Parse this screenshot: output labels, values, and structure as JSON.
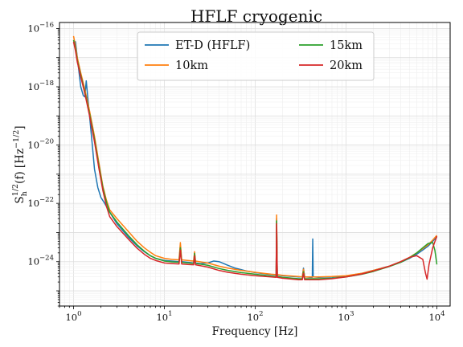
{
  "chart_data": {
    "type": "line",
    "title": "HFLF cryogenic",
    "xlabel": "Frequency [Hz]",
    "ylabel_main": "S",
    "ylabel_sub": "h",
    "ylabel_sup": "1/2",
    "ylabel_rest": "(f) [Hz",
    "ylabel_unit_sup": "−1/2",
    "ylabel_close": "]",
    "xscale": "log",
    "yscale": "log",
    "xlim": [
      0.7,
      14000
    ],
    "ylim": [
      3e-26,
      1.6e-16
    ],
    "grid": true,
    "legend_position": "top-center",
    "x_ticks": [
      {
        "value": 1,
        "base": "10",
        "exp": "0"
      },
      {
        "value": 10,
        "base": "10",
        "exp": "1"
      },
      {
        "value": 100,
        "base": "10",
        "exp": "2"
      },
      {
        "value": 1000,
        "base": "10",
        "exp": "3"
      },
      {
        "value": 10000,
        "base": "10",
        "exp": "4"
      }
    ],
    "y_ticks": [
      {
        "value": 1e-16,
        "base": "10",
        "exp": "−16"
      },
      {
        "value": 1e-18,
        "base": "10",
        "exp": "−18"
      },
      {
        "value": 1e-20,
        "base": "10",
        "exp": "−20"
      },
      {
        "value": 1e-22,
        "base": "10",
        "exp": "−22"
      },
      {
        "value": 1e-24,
        "base": "10",
        "exp": "−24"
      }
    ],
    "series": [
      {
        "name": "ET-D (HFLF)",
        "color": "#1f77b4",
        "points": [
          [
            1.0,
            3e-17
          ],
          [
            1.05,
            3.5e-17
          ],
          [
            1.1,
            1e-17
          ],
          [
            1.2,
            1e-18
          ],
          [
            1.28,
            5e-19
          ],
          [
            1.33,
            4.5e-19
          ],
          [
            1.38,
            1.6e-18
          ],
          [
            1.42,
            6e-19
          ],
          [
            1.5,
            1e-19
          ],
          [
            1.6,
            1.2e-20
          ],
          [
            1.7,
            1.5e-21
          ],
          [
            1.85,
            3.5e-22
          ],
          [
            2.0,
            1.6e-22
          ],
          [
            2.2,
            1e-22
          ],
          [
            2.5,
            5e-23
          ],
          [
            3,
            2e-23
          ],
          [
            4,
            7e-24
          ],
          [
            5,
            3.5e-24
          ],
          [
            6,
            2.2e-24
          ],
          [
            7,
            1.6e-24
          ],
          [
            8,
            1.3e-24
          ],
          [
            10,
            1.1e-24
          ],
          [
            12,
            1.05e-24
          ],
          [
            14.5,
            1e-24
          ],
          [
            15,
            3.5e-24
          ],
          [
            15.5,
            1e-24
          ],
          [
            18,
            9.5e-25
          ],
          [
            21,
            9e-25
          ],
          [
            21.5,
            2e-24
          ],
          [
            22,
            9e-25
          ],
          [
            25,
            8.5e-25
          ],
          [
            30,
            9e-25
          ],
          [
            35,
            1.05e-24
          ],
          [
            40,
            1e-24
          ],
          [
            50,
            7.5e-25
          ],
          [
            60,
            6e-25
          ],
          [
            80,
            4.8e-25
          ],
          [
            100,
            4.2e-25
          ],
          [
            150,
            3.6e-25
          ],
          [
            170,
            3.5e-25
          ],
          [
            172,
            3e-23
          ],
          [
            175,
            3.5e-25
          ],
          [
            200,
            3.3e-25
          ],
          [
            300,
            3e-25
          ],
          [
            330,
            3e-25
          ],
          [
            340,
            6e-25
          ],
          [
            350,
            3e-25
          ],
          [
            400,
            2.9e-25
          ],
          [
            425,
            2.9e-25
          ],
          [
            430,
            6e-24
          ],
          [
            435,
            3e-25
          ],
          [
            500,
            2.9e-25
          ],
          [
            700,
            3e-25
          ],
          [
            1000,
            3.2e-25
          ],
          [
            1500,
            4e-25
          ],
          [
            2000,
            5e-25
          ],
          [
            3000,
            7e-25
          ],
          [
            4000,
            9.5e-25
          ],
          [
            5000,
            1.3e-24
          ],
          [
            6000,
            1.8e-24
          ],
          [
            7000,
            2.5e-24
          ],
          [
            8000,
            3.4e-24
          ],
          [
            9000,
            5e-24
          ],
          [
            10000,
            7e-24
          ]
        ]
      },
      {
        "name": "10km",
        "color": "#ff7f0e",
        "points": [
          [
            1.0,
            5.5e-17
          ],
          [
            1.05,
            2.5e-17
          ],
          [
            1.1,
            1e-17
          ],
          [
            1.2,
            3e-18
          ],
          [
            1.3,
            1.1e-18
          ],
          [
            1.4,
            4e-19
          ],
          [
            1.5,
            1.5e-19
          ],
          [
            1.7,
            2e-20
          ],
          [
            1.9,
            2.5e-21
          ],
          [
            2.1,
            4e-22
          ],
          [
            2.3,
            1.3e-22
          ],
          [
            2.5,
            6e-23
          ],
          [
            3,
            3e-23
          ],
          [
            4,
            1.1e-23
          ],
          [
            5,
            5e-24
          ],
          [
            6,
            3e-24
          ],
          [
            7,
            2.1e-24
          ],
          [
            8,
            1.6e-24
          ],
          [
            10,
            1.3e-24
          ],
          [
            12,
            1.2e-24
          ],
          [
            14.5,
            1.15e-24
          ],
          [
            15,
            4.5e-24
          ],
          [
            15.5,
            1.15e-24
          ],
          [
            18,
            1.1e-24
          ],
          [
            21,
            1.05e-24
          ],
          [
            21.5,
            2.2e-24
          ],
          [
            22,
            1.05e-24
          ],
          [
            30,
            9e-25
          ],
          [
            40,
            7e-25
          ],
          [
            50,
            6e-25
          ],
          [
            70,
            5e-25
          ],
          [
            100,
            4.3e-25
          ],
          [
            150,
            3.7e-25
          ],
          [
            170,
            3.6e-25
          ],
          [
            172,
            4e-23
          ],
          [
            175,
            3.6e-25
          ],
          [
            200,
            3.4e-25
          ],
          [
            300,
            3.1e-25
          ],
          [
            330,
            3e-25
          ],
          [
            340,
            5.5e-25
          ],
          [
            350,
            3e-25
          ],
          [
            500,
            3e-25
          ],
          [
            700,
            3.1e-25
          ],
          [
            1000,
            3.3e-25
          ],
          [
            1500,
            4e-25
          ],
          [
            2000,
            5e-25
          ],
          [
            3000,
            7e-25
          ],
          [
            4000,
            1e-24
          ],
          [
            5000,
            1.4e-24
          ],
          [
            6000,
            2e-24
          ],
          [
            7000,
            2.8e-24
          ],
          [
            8000,
            3.8e-24
          ],
          [
            9000,
            5.5e-24
          ],
          [
            10000,
            8e-24
          ]
        ]
      },
      {
        "name": "15km",
        "color": "#2ca02c",
        "points": [
          [
            1.0,
            4e-17
          ],
          [
            1.05,
            2e-17
          ],
          [
            1.1,
            8e-18
          ],
          [
            1.2,
            2.5e-18
          ],
          [
            1.3,
            9e-19
          ],
          [
            1.4,
            3.2e-19
          ],
          [
            1.5,
            1.2e-19
          ],
          [
            1.7,
            1.6e-20
          ],
          [
            1.9,
            2e-21
          ],
          [
            2.1,
            3.5e-22
          ],
          [
            2.3,
            1.1e-22
          ],
          [
            2.5,
            5e-23
          ],
          [
            3,
            2.3e-23
          ],
          [
            4,
            8e-24
          ],
          [
            5,
            3.8e-24
          ],
          [
            6,
            2.3e-24
          ],
          [
            7,
            1.6e-24
          ],
          [
            8,
            1.3e-24
          ],
          [
            10,
            1.05e-24
          ],
          [
            12,
            9.8e-25
          ],
          [
            14.5,
            9.5e-25
          ],
          [
            15,
            3e-24
          ],
          [
            15.5,
            9.5e-25
          ],
          [
            18,
            9e-25
          ],
          [
            21,
            8.7e-25
          ],
          [
            21.5,
            1.9e-24
          ],
          [
            22,
            8.7e-25
          ],
          [
            30,
            7.5e-25
          ],
          [
            40,
            5.8e-25
          ],
          [
            50,
            5e-25
          ],
          [
            70,
            4.2e-25
          ],
          [
            100,
            3.7e-25
          ],
          [
            150,
            3.2e-25
          ],
          [
            170,
            3.1e-25
          ],
          [
            172,
            2.5e-23
          ],
          [
            175,
            3.1e-25
          ],
          [
            200,
            2.9e-25
          ],
          [
            300,
            2.6e-25
          ],
          [
            330,
            2.6e-25
          ],
          [
            340,
            4.5e-25
          ],
          [
            350,
            2.6e-25
          ],
          [
            500,
            2.6e-25
          ],
          [
            700,
            2.7e-25
          ],
          [
            1000,
            3e-25
          ],
          [
            1500,
            3.7e-25
          ],
          [
            2000,
            4.6e-25
          ],
          [
            3000,
            6.8e-25
          ],
          [
            4000,
            9.5e-25
          ],
          [
            5000,
            1.35e-24
          ],
          [
            6000,
            2e-24
          ],
          [
            7000,
            3e-24
          ],
          [
            8000,
            4.2e-24
          ],
          [
            9000,
            4.5e-24
          ],
          [
            9500,
            2.5e-24
          ],
          [
            10000,
            8e-25
          ]
        ]
      },
      {
        "name": "20km",
        "color": "#d62728",
        "points": [
          [
            1.0,
            3.5e-17
          ],
          [
            1.05,
            1.7e-17
          ],
          [
            1.1,
            7e-18
          ],
          [
            1.2,
            2.2e-18
          ],
          [
            1.3,
            8e-19
          ],
          [
            1.4,
            2.8e-19
          ],
          [
            1.5,
            1e-19
          ],
          [
            1.7,
            1.3e-20
          ],
          [
            1.9,
            1.6e-21
          ],
          [
            2.1,
            2.8e-22
          ],
          [
            2.3,
            8e-23
          ],
          [
            2.5,
            3.5e-23
          ],
          [
            3,
            1.6e-23
          ],
          [
            4,
            6e-24
          ],
          [
            5,
            2.9e-24
          ],
          [
            6,
            1.8e-24
          ],
          [
            7,
            1.3e-24
          ],
          [
            8,
            1.1e-24
          ],
          [
            10,
            9e-25
          ],
          [
            12,
            8.6e-25
          ],
          [
            14.5,
            8.3e-25
          ],
          [
            15,
            2.5e-24
          ],
          [
            15.5,
            8.3e-25
          ],
          [
            18,
            8e-25
          ],
          [
            21,
            7.8e-25
          ],
          [
            21.5,
            1.6e-24
          ],
          [
            22,
            7.8e-25
          ],
          [
            30,
            6.5e-25
          ],
          [
            40,
            5e-25
          ],
          [
            50,
            4.3e-25
          ],
          [
            70,
            3.7e-25
          ],
          [
            100,
            3.3e-25
          ],
          [
            150,
            3e-25
          ],
          [
            170,
            2.9e-25
          ],
          [
            172,
            2e-23
          ],
          [
            175,
            2.9e-25
          ],
          [
            200,
            2.7e-25
          ],
          [
            300,
            2.4e-25
          ],
          [
            330,
            2.4e-25
          ],
          [
            340,
            4e-25
          ],
          [
            350,
            2.4e-25
          ],
          [
            500,
            2.4e-25
          ],
          [
            700,
            2.6e-25
          ],
          [
            1000,
            3e-25
          ],
          [
            1500,
            3.8e-25
          ],
          [
            2000,
            4.8e-25
          ],
          [
            3000,
            7e-25
          ],
          [
            4000,
            1e-24
          ],
          [
            5000,
            1.4e-24
          ],
          [
            6000,
            1.6e-24
          ],
          [
            7000,
            1.2e-24
          ],
          [
            7500,
            4e-25
          ],
          [
            7800,
            2.5e-25
          ],
          [
            8200,
            8e-25
          ],
          [
            9000,
            3e-24
          ],
          [
            10000,
            7.5e-24
          ]
        ]
      }
    ]
  }
}
